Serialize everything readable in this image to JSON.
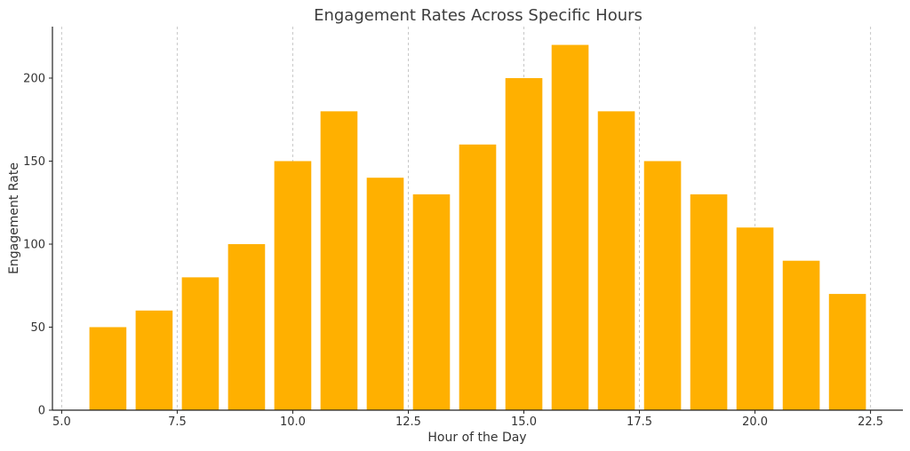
{
  "chart_data": {
    "type": "bar",
    "title": "Engagement Rates Across Specific Hours",
    "xlabel": "Hour of the Day",
    "ylabel": "Engagement Rate",
    "x": [
      6,
      7,
      8,
      9,
      10,
      11,
      12,
      13,
      14,
      15,
      16,
      17,
      18,
      19,
      20,
      21,
      22
    ],
    "values": [
      50,
      60,
      80,
      100,
      150,
      180,
      140,
      130,
      160,
      200,
      220,
      180,
      150,
      130,
      110,
      90,
      70
    ],
    "bar_width": 0.8,
    "xlim": [
      4.8,
      23.2
    ],
    "ylim": [
      0,
      231
    ],
    "xticks": [
      5.0,
      7.5,
      10.0,
      12.5,
      15.0,
      17.5,
      20.0,
      22.5
    ],
    "xtick_labels": [
      "5.0",
      "7.5",
      "10.0",
      "12.5",
      "15.0",
      "17.5",
      "20.0",
      "22.5"
    ],
    "yticks": [
      0,
      50,
      100,
      150,
      200
    ],
    "ytick_labels": [
      "0",
      "50",
      "100",
      "150",
      "200"
    ],
    "grid": "x-axis vertical dashed",
    "legend": "none",
    "bar_color": "#FFB000",
    "grid_color": "#C8C8C8"
  }
}
